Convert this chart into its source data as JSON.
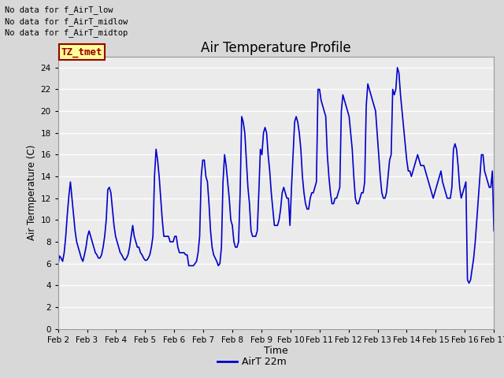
{
  "title": "Air Temperature Profile",
  "xlabel": "Time",
  "ylabel": "Air Termperature (C)",
  "ylim": [
    0,
    25
  ],
  "yticks": [
    0,
    2,
    4,
    6,
    8,
    10,
    12,
    14,
    16,
    18,
    20,
    22,
    24
  ],
  "line_color": "#0000cc",
  "line_width": 1.2,
  "background_color": "#d8d8d8",
  "plot_bg_color": "#ebebeb",
  "annotations": [
    "No data for f_AirT_low",
    "No data for f_AirT_midlow",
    "No data for f_AirT_midtop"
  ],
  "tz_box_text": "TZ_tmet",
  "tz_box_color": "#990000",
  "tz_box_bg": "#ffff99",
  "legend_label": "AirT 22m",
  "x_dates": [
    "Feb 2",
    "Feb 3",
    "Feb 4",
    "Feb 5",
    "Feb 6",
    "Feb 7",
    "Feb 8",
    "Feb 9",
    "Feb 10",
    "Feb 11",
    "Feb 12",
    "Feb 13",
    "Feb 14",
    "Feb 15",
    "Feb 16",
    "Feb 17"
  ],
  "temperature_data": [
    5.8,
    6.7,
    6.5,
    6.2,
    7.0,
    8.5,
    10.5,
    12.2,
    13.5,
    12.0,
    10.5,
    9.0,
    8.0,
    7.5,
    7.0,
    6.5,
    6.2,
    6.8,
    7.5,
    8.5,
    9.0,
    8.5,
    8.0,
    7.5,
    7.0,
    6.8,
    6.5,
    6.5,
    6.8,
    7.5,
    8.5,
    10.0,
    12.8,
    13.0,
    12.5,
    11.0,
    9.5,
    8.5,
    8.0,
    7.5,
    7.0,
    6.8,
    6.5,
    6.3,
    6.5,
    6.8,
    7.5,
    8.5,
    9.5,
    8.5,
    8.0,
    7.5,
    7.5,
    7.0,
    6.8,
    6.5,
    6.3,
    6.3,
    6.5,
    6.8,
    7.5,
    8.5,
    14.0,
    16.5,
    15.5,
    14.0,
    12.0,
    10.0,
    8.5,
    8.5,
    8.5,
    8.5,
    8.0,
    8.0,
    8.0,
    8.5,
    8.5,
    7.5,
    7.0,
    7.0,
    7.0,
    7.0,
    6.8,
    6.8,
    5.8,
    5.8,
    5.8,
    5.8,
    6.0,
    6.2,
    7.0,
    8.5,
    14.0,
    15.5,
    15.5,
    14.0,
    13.5,
    11.5,
    9.0,
    7.5,
    6.8,
    6.5,
    6.2,
    5.8,
    6.0,
    7.5,
    13.5,
    16.0,
    15.0,
    13.5,
    12.0,
    10.0,
    9.5,
    8.0,
    7.5,
    7.5,
    8.0,
    12.5,
    19.5,
    19.0,
    18.0,
    15.5,
    13.0,
    11.5,
    9.0,
    8.5,
    8.5,
    8.5,
    9.0,
    12.5,
    16.5,
    16.0,
    18.0,
    18.5,
    18.0,
    16.0,
    14.5,
    12.5,
    11.0,
    9.5,
    9.5,
    9.5,
    10.0,
    11.0,
    12.5,
    13.0,
    12.5,
    12.0,
    12.0,
    9.5,
    13.0,
    16.0,
    19.0,
    19.5,
    19.0,
    18.0,
    16.5,
    14.0,
    12.5,
    11.5,
    11.0,
    11.0,
    12.0,
    12.5,
    12.5,
    13.0,
    13.5,
    22.0,
    22.0,
    21.0,
    20.5,
    20.0,
    19.5,
    16.0,
    14.0,
    12.5,
    11.5,
    11.5,
    12.0,
    12.0,
    12.5,
    13.0,
    20.0,
    21.5,
    21.0,
    20.5,
    20.0,
    19.5,
    18.0,
    16.5,
    14.0,
    12.0,
    11.5,
    11.5,
    12.0,
    12.5,
    12.5,
    13.5,
    20.5,
    22.5,
    22.0,
    21.5,
    21.0,
    20.5,
    20.0,
    18.0,
    16.0,
    14.0,
    12.5,
    12.0,
    12.0,
    12.5,
    14.0,
    15.5,
    16.0,
    22.0,
    21.5,
    22.0,
    24.0,
    23.5,
    21.5,
    20.0,
    18.5,
    17.0,
    15.5,
    14.5,
    14.5,
    14.0,
    14.5,
    15.0,
    15.5,
    16.0,
    15.5,
    15.0,
    15.0,
    15.0,
    14.5,
    14.0,
    13.5,
    13.0,
    12.5,
    12.0,
    12.5,
    13.0,
    13.5,
    14.0,
    14.5,
    13.5,
    13.0,
    12.5,
    12.0,
    12.0,
    12.0,
    13.0,
    16.5,
    17.0,
    16.5,
    15.0,
    13.0,
    12.0,
    12.5,
    13.0,
    13.5,
    4.5,
    4.2,
    4.5,
    5.5,
    6.5,
    8.0,
    10.0,
    12.0,
    14.0,
    16.0,
    16.0,
    14.5,
    14.0,
    13.5,
    13.0,
    13.0,
    14.5,
    9.0
  ]
}
